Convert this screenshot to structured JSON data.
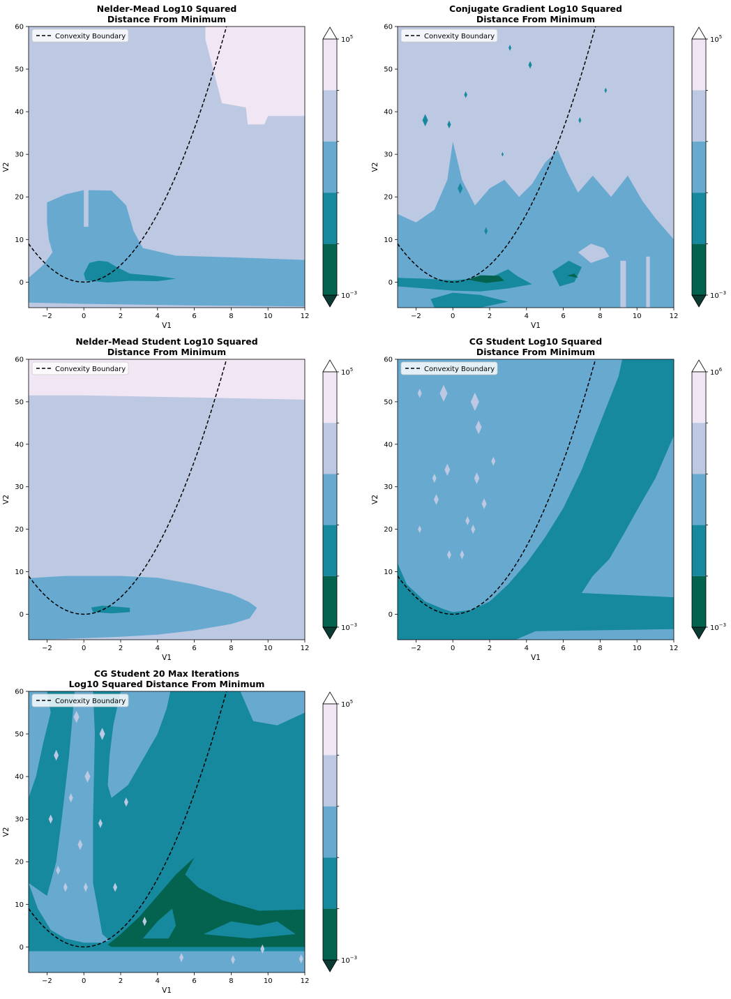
{
  "colors": {
    "level1": "#03634f",
    "level2": "#16899e",
    "level3": "#68a9d0",
    "level4": "#bdc8e2",
    "level5": "#f1e6f3",
    "boundary": "#000000"
  },
  "chart_data": [
    {
      "type": "contour",
      "title_line1": "Nelder-Mead Log10 Squared",
      "title_line2": "Distance From Minimum",
      "xlabel": "V1",
      "ylabel": "V2",
      "xlim": [
        -3,
        12
      ],
      "ylim": [
        -6,
        60
      ],
      "xticks": [
        -2,
        0,
        2,
        4,
        6,
        8,
        10,
        12
      ],
      "yticks": [
        0,
        10,
        20,
        30,
        40,
        50,
        60
      ],
      "xtick_labels": [
        "−2",
        "0",
        "2",
        "4",
        "6",
        "8",
        "10",
        "12"
      ],
      "ytick_labels": [
        "0",
        "10",
        "20",
        "30",
        "40",
        "50",
        "60"
      ],
      "legend": "Convexity Boundary",
      "legend_loc": "upper-left",
      "boundary": "V2 = V1^2",
      "colorbar_min": "10",
      "colorbar_min_exp": "−3",
      "colorbar_max": "10",
      "colorbar_max_exp": "5",
      "background_level": 4
    },
    {
      "type": "contour",
      "title_line1": "Conjugate Gradient Log10 Squared",
      "title_line2": "Distance From Minimum",
      "xlabel": "V1",
      "ylabel": "V2",
      "xlim": [
        -3,
        12
      ],
      "ylim": [
        -6,
        60
      ],
      "xticks": [
        -2,
        0,
        2,
        4,
        6,
        8,
        10,
        12
      ],
      "yticks": [
        0,
        10,
        20,
        30,
        40,
        50,
        60
      ],
      "xtick_labels": [
        "−2",
        "0",
        "2",
        "4",
        "6",
        "8",
        "10",
        "12"
      ],
      "ytick_labels": [
        "0",
        "10",
        "20",
        "30",
        "40",
        "50",
        "60"
      ],
      "legend": "Convexity Boundary",
      "legend_loc": "upper-left",
      "boundary": "V2 = V1^2",
      "colorbar_min": "10",
      "colorbar_min_exp": "−3",
      "colorbar_max": "10",
      "colorbar_max_exp": "5",
      "background_level": 4
    },
    {
      "type": "contour",
      "title_line1": "Nelder-Mead Student Log10 Squared",
      "title_line2": "Distance From Minimum",
      "xlabel": "V1",
      "ylabel": "V2",
      "xlim": [
        -3,
        12
      ],
      "ylim": [
        -6,
        60
      ],
      "xticks": [
        -2,
        0,
        2,
        4,
        6,
        8,
        10,
        12
      ],
      "yticks": [
        0,
        10,
        20,
        30,
        40,
        50,
        60
      ],
      "xtick_labels": [
        "−2",
        "0",
        "2",
        "4",
        "6",
        "8",
        "10",
        "12"
      ],
      "ytick_labels": [
        "0",
        "10",
        "20",
        "30",
        "40",
        "50",
        "60"
      ],
      "legend": "Convexity Boundary",
      "legend_loc": "upper-left",
      "boundary": "V2 = V1^2",
      "colorbar_min": "10",
      "colorbar_min_exp": "−3",
      "colorbar_max": "10",
      "colorbar_max_exp": "5",
      "background_level": 4
    },
    {
      "type": "contour",
      "title_line1": "CG Student Log10 Squared",
      "title_line2": "Distance From Minimum",
      "xlabel": "V1",
      "ylabel": "V2",
      "xlim": [
        -3,
        12
      ],
      "ylim": [
        -6,
        60
      ],
      "xticks": [
        -2,
        0,
        2,
        4,
        6,
        8,
        10,
        12
      ],
      "yticks": [
        0,
        10,
        20,
        30,
        40,
        50,
        60
      ],
      "xtick_labels": [
        "−2",
        "0",
        "2",
        "4",
        "6",
        "8",
        "10",
        "12"
      ],
      "ytick_labels": [
        "0",
        "10",
        "20",
        "30",
        "40",
        "50",
        "60"
      ],
      "legend": "Convexity Boundary",
      "legend_loc": "upper-left",
      "boundary": "V2 = V1^2",
      "colorbar_min": "10",
      "colorbar_min_exp": "−3",
      "colorbar_max": "10",
      "colorbar_max_exp": "6",
      "background_level": 3
    },
    {
      "type": "contour",
      "title_line1": "CG Student 20 Max Iterations",
      "title_line2": "Log10 Squared Distance From Minimum",
      "xlabel": "V1",
      "ylabel": "V2",
      "xlim": [
        -3,
        12
      ],
      "ylim": [
        -6,
        60
      ],
      "xticks": [
        -2,
        0,
        2,
        4,
        6,
        8,
        10,
        12
      ],
      "yticks": [
        0,
        10,
        20,
        30,
        40,
        50,
        60
      ],
      "xtick_labels": [
        "−2",
        "0",
        "2",
        "4",
        "6",
        "8",
        "10",
        "12"
      ],
      "ytick_labels": [
        "0",
        "10",
        "20",
        "30",
        "40",
        "50",
        "60"
      ],
      "legend": "Convexity Boundary",
      "legend_loc": "upper-left",
      "boundary": "V2 = V1^2",
      "colorbar_min": "10",
      "colorbar_min_exp": "−3",
      "colorbar_max": "10",
      "colorbar_max_exp": "5",
      "background_level": 2
    }
  ]
}
